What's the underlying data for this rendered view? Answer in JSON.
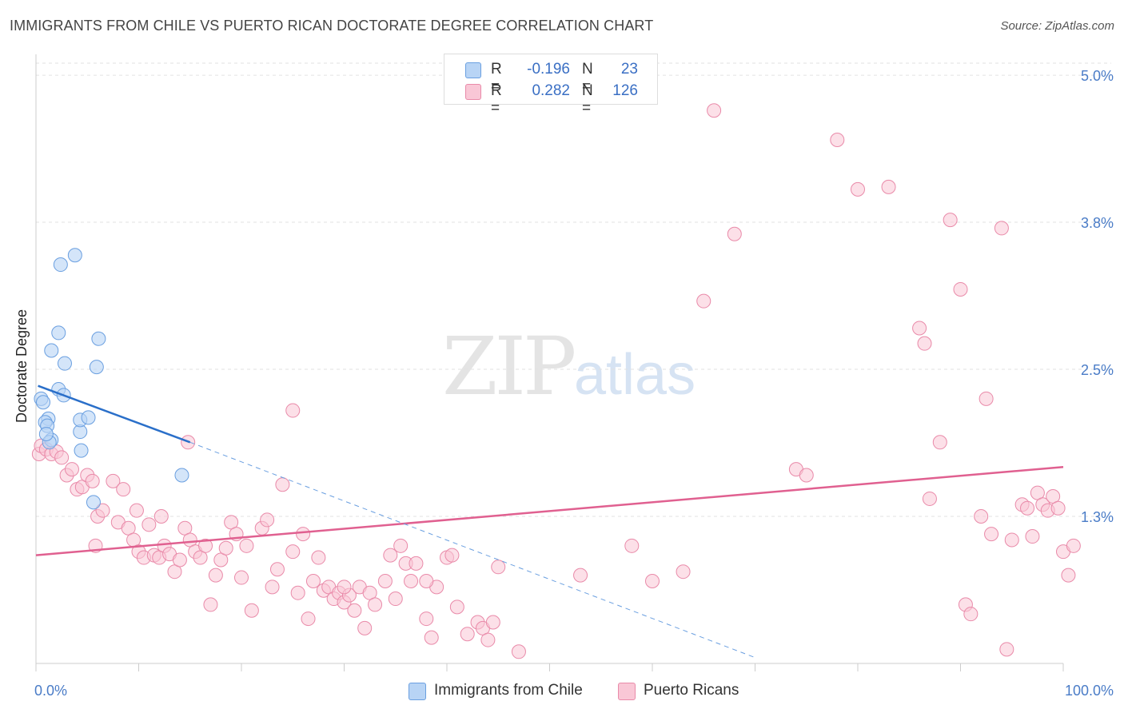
{
  "title": "IMMIGRANTS FROM CHILE VS PUERTO RICAN DOCTORATE DEGREE CORRELATION CHART",
  "source": "Source: ZipAtlas.com",
  "watermark": {
    "zip": "ZIP",
    "atlas": "atlas"
  },
  "legend": {
    "series1": {
      "r_label": "R =",
      "r_value": "-0.196",
      "n_label": "N =",
      "n_value": "23"
    },
    "series2": {
      "r_label": "R =",
      "r_value": "0.282",
      "n_label": "N =",
      "n_value": "126"
    }
  },
  "bottom_legend": {
    "series1": "Immigrants from Chile",
    "series2": "Puerto Ricans"
  },
  "colors": {
    "chile_fill": "#b8d4f5",
    "chile_stroke": "#6a9fe0",
    "chile_line": "#2a6fc9",
    "pr_fill": "#f9c7d6",
    "pr_stroke": "#e98aa9",
    "pr_line": "#e06090",
    "axis_label": "#4a7cc7",
    "grid": "#e2e2e2"
  },
  "chart_data": {
    "type": "scatter",
    "title": "IMMIGRANTS FROM CHILE VS PUERTO RICAN DOCTORATE DEGREE CORRELATION CHART",
    "xlabel": "",
    "ylabel": "Doctorate Degree",
    "xlim": [
      0,
      100
    ],
    "ylim": [
      0,
      5.15
    ],
    "x_tick_labels": [
      "0.0%",
      "100.0%"
    ],
    "y_ticks": [
      1.25,
      2.5,
      3.75,
      5.0
    ],
    "y_tick_labels": [
      "1.3%",
      "2.5%",
      "3.8%",
      "5.0%"
    ],
    "grid": true,
    "legend_position": "top-center",
    "series": [
      {
        "name": "Immigrants from Chile",
        "r": -0.196,
        "n": 23,
        "points": [
          [
            0.5,
            2.25
          ],
          [
            0.7,
            2.22
          ],
          [
            1.2,
            2.08
          ],
          [
            0.9,
            2.05
          ],
          [
            1.1,
            2.02
          ],
          [
            1.5,
            1.9
          ],
          [
            1.3,
            1.88
          ],
          [
            1.0,
            1.95
          ],
          [
            2.2,
            2.33
          ],
          [
            2.7,
            2.28
          ],
          [
            2.8,
            2.55
          ],
          [
            1.5,
            2.66
          ],
          [
            2.2,
            2.81
          ],
          [
            2.4,
            3.39
          ],
          [
            3.8,
            3.47
          ],
          [
            4.3,
            1.97
          ],
          [
            4.4,
            1.81
          ],
          [
            4.3,
            2.07
          ],
          [
            5.1,
            2.09
          ],
          [
            5.9,
            2.52
          ],
          [
            6.1,
            2.76
          ],
          [
            5.6,
            1.37
          ],
          [
            14.2,
            1.6
          ]
        ],
        "trend_solid": [
          [
            0.2,
            2.36
          ],
          [
            15.0,
            1.88
          ]
        ],
        "trend_dashed": [
          [
            15.0,
            1.88
          ],
          [
            70.0,
            0.05
          ]
        ]
      },
      {
        "name": "Puerto Ricans",
        "r": 0.282,
        "n": 126,
        "points": [
          [
            0.3,
            1.78
          ],
          [
            0.5,
            1.85
          ],
          [
            1.0,
            1.82
          ],
          [
            1.5,
            1.78
          ],
          [
            2.0,
            1.8
          ],
          [
            2.5,
            1.75
          ],
          [
            3.0,
            1.6
          ],
          [
            3.5,
            1.65
          ],
          [
            4.0,
            1.48
          ],
          [
            4.5,
            1.5
          ],
          [
            5.0,
            1.6
          ],
          [
            5.5,
            1.55
          ],
          [
            6.0,
            1.25
          ],
          [
            6.5,
            1.3
          ],
          [
            7.5,
            1.55
          ],
          [
            8.0,
            1.2
          ],
          [
            8.5,
            1.48
          ],
          [
            9.0,
            1.15
          ],
          [
            9.5,
            1.05
          ],
          [
            10.0,
            0.95
          ],
          [
            10.5,
            0.9
          ],
          [
            11.0,
            1.18
          ],
          [
            11.5,
            0.92
          ],
          [
            12.0,
            0.9
          ],
          [
            12.5,
            1.0
          ],
          [
            13.0,
            0.93
          ],
          [
            13.5,
            0.78
          ],
          [
            14.0,
            0.88
          ],
          [
            14.5,
            1.15
          ],
          [
            15.0,
            1.05
          ],
          [
            15.5,
            0.95
          ],
          [
            16.0,
            0.9
          ],
          [
            16.5,
            1.0
          ],
          [
            17.0,
            0.5
          ],
          [
            17.5,
            0.75
          ],
          [
            18.0,
            0.88
          ],
          [
            19.0,
            1.2
          ],
          [
            19.5,
            1.1
          ],
          [
            20.0,
            0.73
          ],
          [
            20.5,
            1.0
          ],
          [
            21.0,
            0.45
          ],
          [
            22.0,
            1.15
          ],
          [
            22.5,
            1.22
          ],
          [
            23.0,
            0.65
          ],
          [
            23.5,
            0.8
          ],
          [
            24.0,
            1.52
          ],
          [
            25.0,
            0.95
          ],
          [
            25.5,
            0.6
          ],
          [
            26.0,
            1.1
          ],
          [
            26.5,
            0.38
          ],
          [
            27.0,
            0.7
          ],
          [
            27.5,
            0.9
          ],
          [
            28.0,
            0.62
          ],
          [
            28.5,
            0.65
          ],
          [
            29.0,
            0.55
          ],
          [
            29.5,
            0.6
          ],
          [
            30.0,
            0.52
          ],
          [
            30.5,
            0.58
          ],
          [
            31.0,
            0.45
          ],
          [
            31.5,
            0.65
          ],
          [
            32.0,
            0.3
          ],
          [
            32.5,
            0.6
          ],
          [
            33.0,
            0.5
          ],
          [
            34.0,
            0.7
          ],
          [
            34.5,
            0.92
          ],
          [
            35.0,
            0.55
          ],
          [
            36.0,
            0.85
          ],
          [
            36.5,
            0.7
          ],
          [
            37.0,
            0.85
          ],
          [
            38.0,
            0.38
          ],
          [
            38.5,
            0.22
          ],
          [
            39.0,
            0.65
          ],
          [
            40.0,
            0.9
          ],
          [
            41.0,
            0.48
          ],
          [
            42.0,
            0.25
          ],
          [
            43.0,
            0.35
          ],
          [
            43.5,
            0.3
          ],
          [
            44.0,
            0.2
          ],
          [
            45.0,
            0.82
          ],
          [
            47.0,
            0.1
          ],
          [
            53.0,
            0.75
          ],
          [
            58.0,
            1.0
          ],
          [
            60.0,
            0.7
          ],
          [
            63.0,
            0.78
          ],
          [
            65.0,
            3.08
          ],
          [
            66.0,
            4.7
          ],
          [
            68.0,
            3.65
          ],
          [
            74.0,
            1.65
          ],
          [
            75.0,
            1.6
          ],
          [
            78.0,
            4.45
          ],
          [
            80.0,
            4.03
          ],
          [
            83.0,
            4.05
          ],
          [
            86.0,
            2.85
          ],
          [
            86.5,
            2.72
          ],
          [
            87.0,
            1.4
          ],
          [
            88.0,
            1.88
          ],
          [
            89.0,
            3.77
          ],
          [
            90.0,
            3.18
          ],
          [
            90.5,
            0.5
          ],
          [
            91.0,
            0.42
          ],
          [
            92.0,
            1.25
          ],
          [
            92.5,
            2.25
          ],
          [
            93.0,
            1.1
          ],
          [
            94.0,
            3.7
          ],
          [
            94.5,
            0.12
          ],
          [
            95.0,
            1.05
          ],
          [
            96.0,
            1.35
          ],
          [
            96.5,
            1.32
          ],
          [
            97.0,
            1.08
          ],
          [
            97.5,
            1.45
          ],
          [
            98.0,
            1.35
          ],
          [
            98.5,
            1.3
          ],
          [
            99.0,
            1.42
          ],
          [
            99.5,
            1.32
          ],
          [
            100.0,
            0.95
          ],
          [
            100.5,
            0.75
          ],
          [
            101.0,
            1.0
          ],
          [
            30.0,
            0.65
          ],
          [
            35.5,
            1.0
          ],
          [
            18.5,
            0.98
          ],
          [
            14.8,
            1.88
          ],
          [
            25.0,
            2.15
          ],
          [
            5.8,
            1.0
          ],
          [
            9.8,
            1.3
          ],
          [
            12.2,
            1.25
          ],
          [
            44.5,
            0.35
          ],
          [
            40.5,
            0.92
          ],
          [
            38.0,
            0.7
          ]
        ],
        "trend": [
          [
            0.0,
            0.92
          ],
          [
            100.0,
            1.67
          ]
        ]
      }
    ]
  }
}
